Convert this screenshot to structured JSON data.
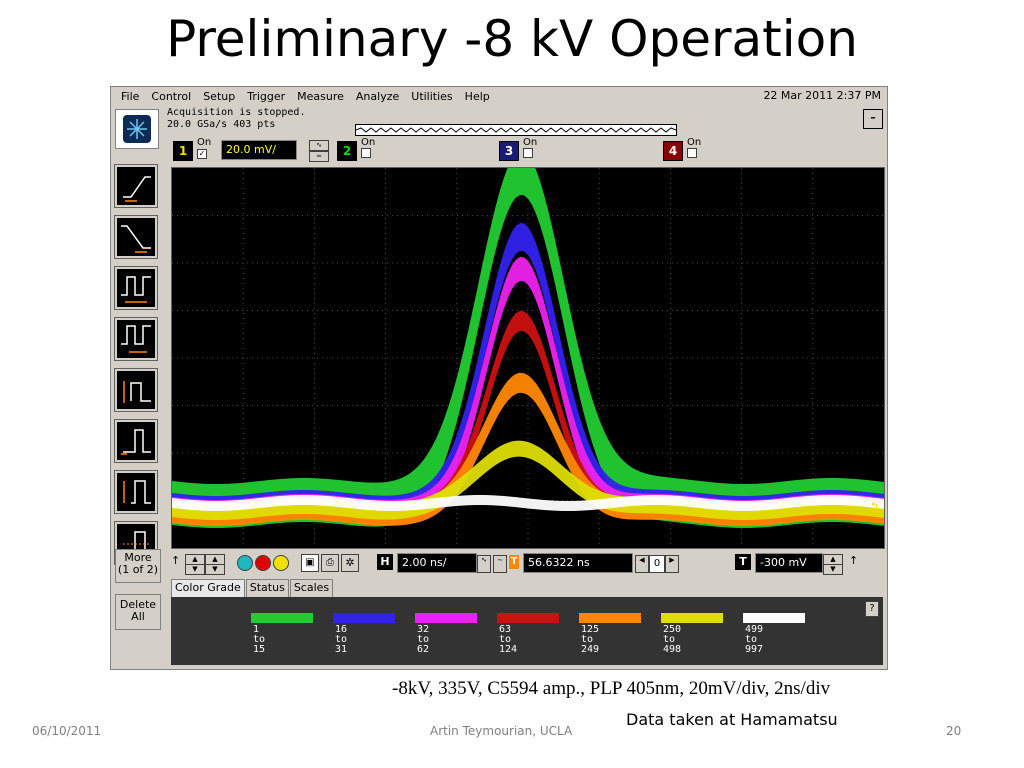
{
  "slide": {
    "title": "Preliminary -8 kV Operation",
    "caption": "-8kV, 335V, C5594 amp., PLP 405nm, 20mV/div, 2ns/div",
    "subcaption": "Data taken at Hamamatsu",
    "footer_date": "06/10/2011",
    "footer_author": "Artin Teymourian, UCLA",
    "page_number": "20"
  },
  "scope": {
    "menu": [
      "File",
      "Control",
      "Setup",
      "Trigger",
      "Measure",
      "Analyze",
      "Utilities",
      "Help"
    ],
    "datetime": "22 Mar 2011  2:37 PM",
    "status_line1": "Acquisition is stopped.",
    "status_line2": "20.0 GSa/s   403 pts",
    "channels": [
      {
        "num": "1",
        "on_label": "On",
        "checked": true,
        "color": "#f0e000",
        "scale": "20.0 mV/"
      },
      {
        "num": "2",
        "on_label": "On",
        "checked": false,
        "color": "#00c000"
      },
      {
        "num": "3",
        "on_label": "On",
        "checked": false,
        "color": "#2040ff"
      },
      {
        "num": "4",
        "on_label": "On",
        "checked": false,
        "color": "#e00000"
      }
    ],
    "toolbar_more": "More",
    "toolbar_more_sub": "(1 of 2)",
    "toolbar_delete": "Delete",
    "toolbar_delete_sub": "All",
    "horizontal": {
      "time_per_div": "2.00 ns/",
      "delay": "56.6322 ns",
      "ref_value": "0",
      "trigger_level": "-300 mV"
    },
    "tabs": [
      "Color Grade",
      "Status",
      "Scales"
    ],
    "color_grade": [
      {
        "color": "#22cc33",
        "from": "1",
        "to_label": "to",
        "to": "15"
      },
      {
        "color": "#3322ee",
        "from": "16",
        "to_label": "to",
        "to": "31"
      },
      {
        "color": "#ee22ee",
        "from": "32",
        "to_label": "to",
        "to": "62"
      },
      {
        "color": "#cc1111",
        "from": "63",
        "to_label": "to",
        "to": "124"
      },
      {
        "color": "#ff8800",
        "from": "125",
        "to_label": "to",
        "to": "249"
      },
      {
        "color": "#dddd00",
        "from": "250",
        "to_label": "to",
        "to": "498"
      },
      {
        "color": "#ffffff",
        "from": "499",
        "to_label": "to",
        "to": "997"
      }
    ],
    "help_label": "?"
  }
}
